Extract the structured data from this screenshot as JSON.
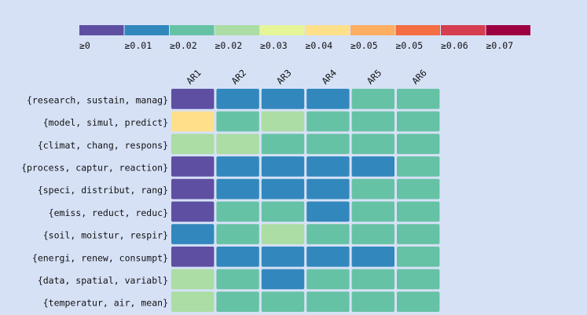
{
  "chart_data": {
    "type": "heatmap",
    "title": "",
    "xlabel": "",
    "ylabel": "",
    "columns": [
      "AR1",
      "AR2",
      "AR3",
      "AR4",
      "AR5",
      "AR6"
    ],
    "rows": [
      "{research, sustain, manag}",
      "{model, simul, predict}",
      "{climat, chang, respons}",
      "{process, captur, reaction}",
      "{speci, distribut, rang}",
      "{emiss, reduct, reduc}",
      "{soil, moistur, respir}",
      "{energi, renew, consumpt}",
      "{data, spatial, variabl}",
      "{temperatur, air, mean}"
    ],
    "values": [
      [
        0.0,
        0.01,
        0.01,
        0.01,
        0.02,
        0.02
      ],
      [
        0.045,
        0.02,
        0.025,
        0.02,
        0.02,
        0.02
      ],
      [
        0.025,
        0.025,
        0.02,
        0.02,
        0.02,
        0.02
      ],
      [
        0.0,
        0.01,
        0.01,
        0.01,
        0.01,
        0.02
      ],
      [
        0.0,
        0.01,
        0.01,
        0.01,
        0.02,
        0.02
      ],
      [
        0.0,
        0.02,
        0.02,
        0.01,
        0.02,
        0.02
      ],
      [
        0.01,
        0.02,
        0.025,
        0.02,
        0.02,
        0.02
      ],
      [
        0.0,
        0.01,
        0.01,
        0.01,
        0.01,
        0.02
      ],
      [
        0.025,
        0.02,
        0.01,
        0.02,
        0.02,
        0.02
      ],
      [
        0.025,
        0.02,
        0.02,
        0.02,
        0.02,
        0.02
      ]
    ],
    "legend": {
      "labels": [
        "≥0",
        "≥0.01",
        "≥0.02",
        "≥0.02",
        "≥0.03",
        "≥0.04",
        "≥0.05",
        "≥0.05",
        "≥0.06",
        "≥0.07"
      ],
      "thresholds": [
        0,
        0.008,
        0.016,
        0.024,
        0.032,
        0.04,
        0.048,
        0.056,
        0.064,
        0.072
      ],
      "colors": [
        "#5e4fa2",
        "#3288bd",
        "#66c2a5",
        "#abdda4",
        "#e6f598",
        "#fee08b",
        "#fdae61",
        "#f46d43",
        "#d53e4f",
        "#9e0142"
      ],
      "placement": "top"
    }
  }
}
